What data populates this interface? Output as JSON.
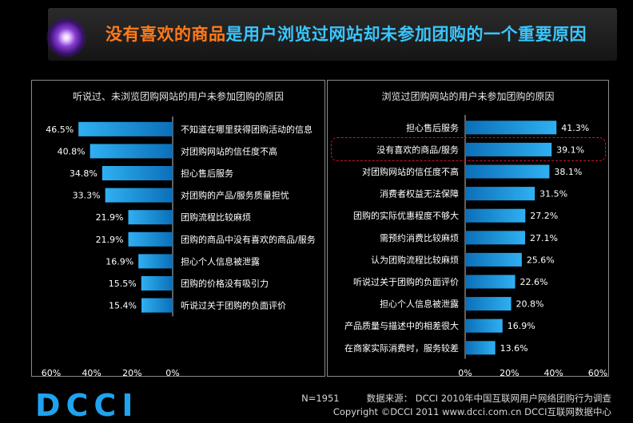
{
  "title": {
    "highlight": "没有喜欢的商品",
    "rest": "是用户浏览过网站却未参加团购的一个重要原因"
  },
  "chart_data": [
    {
      "type": "bar",
      "orientation": "horizontal",
      "direction": "right-to-left",
      "title": "听说过、未浏览团购网站的用户未参加团购的原因",
      "categories": [
        "不知道在哪里获得团购活动的信息",
        "对团购网站的信任度不高",
        "担心售后服务",
        "对团购的产品/服务质量担忧",
        "团购流程比较麻烦",
        "团购的商品中没有喜欢的商品/服务",
        "担心个人信息被泄露",
        "团购的价格没有吸引力",
        "听说过关于团购的负面评价"
      ],
      "values": [
        46.5,
        40.8,
        34.8,
        33.3,
        21.9,
        21.9,
        16.9,
        15.5,
        15.4
      ],
      "value_labels": [
        "46.5%",
        "40.8%",
        "34.8%",
        "33.3%",
        "21.9%",
        "21.9%",
        "16.9%",
        "15.5%",
        "15.4%"
      ],
      "xlim": [
        0,
        60
      ],
      "xticks": [
        "60%",
        "40%",
        "20%",
        "0%"
      ],
      "color": "#1e9be6"
    },
    {
      "type": "bar",
      "orientation": "horizontal",
      "direction": "left-to-right",
      "title": "浏览过团购网站的用户未参加团购的原因",
      "categories": [
        "担心售后服务",
        "没有喜欢的商品/服务",
        "对团购网站的信任度不高",
        "消费者权益无法保障",
        "团购的实际优惠程度不够大",
        "需预约消费比较麻烦",
        "认为团购流程比较麻烦",
        "听说过关于团购的负面评价",
        "担心个人信息被泄露",
        "产品质量与描述中的相差很大",
        "在商家实际消费时，服务较差"
      ],
      "values": [
        41.3,
        39.1,
        38.1,
        31.5,
        27.2,
        27.1,
        25.6,
        22.6,
        20.8,
        16.9,
        13.6
      ],
      "value_labels": [
        "41.3%",
        "39.1%",
        "38.1%",
        "31.5%",
        "27.2%",
        "27.1%",
        "25.6%",
        "22.6%",
        "20.8%",
        "16.9%",
        "13.6%"
      ],
      "xlim": [
        0,
        60
      ],
      "xticks": [
        "0%",
        "20%",
        "40%",
        "60%"
      ],
      "highlighted_category": "没有喜欢的商品/服务",
      "highlight_color": "#d2142b",
      "color": "#1e9be6"
    }
  ],
  "footer": {
    "logo": "DCCI",
    "sample": "N=1951",
    "source": "数据来源： DCCI 2010年中国互联网用户网络团购行为调查",
    "copyright": "Copyright ©DCCI 2011 www.dcci.com.cn   DCCI互联网数据中心"
  },
  "colors": {
    "bar": "#1e9be6",
    "title_highlight": "#ff7a1a",
    "title_rest": "#38c7ff",
    "logo": "#1ea3ef"
  }
}
